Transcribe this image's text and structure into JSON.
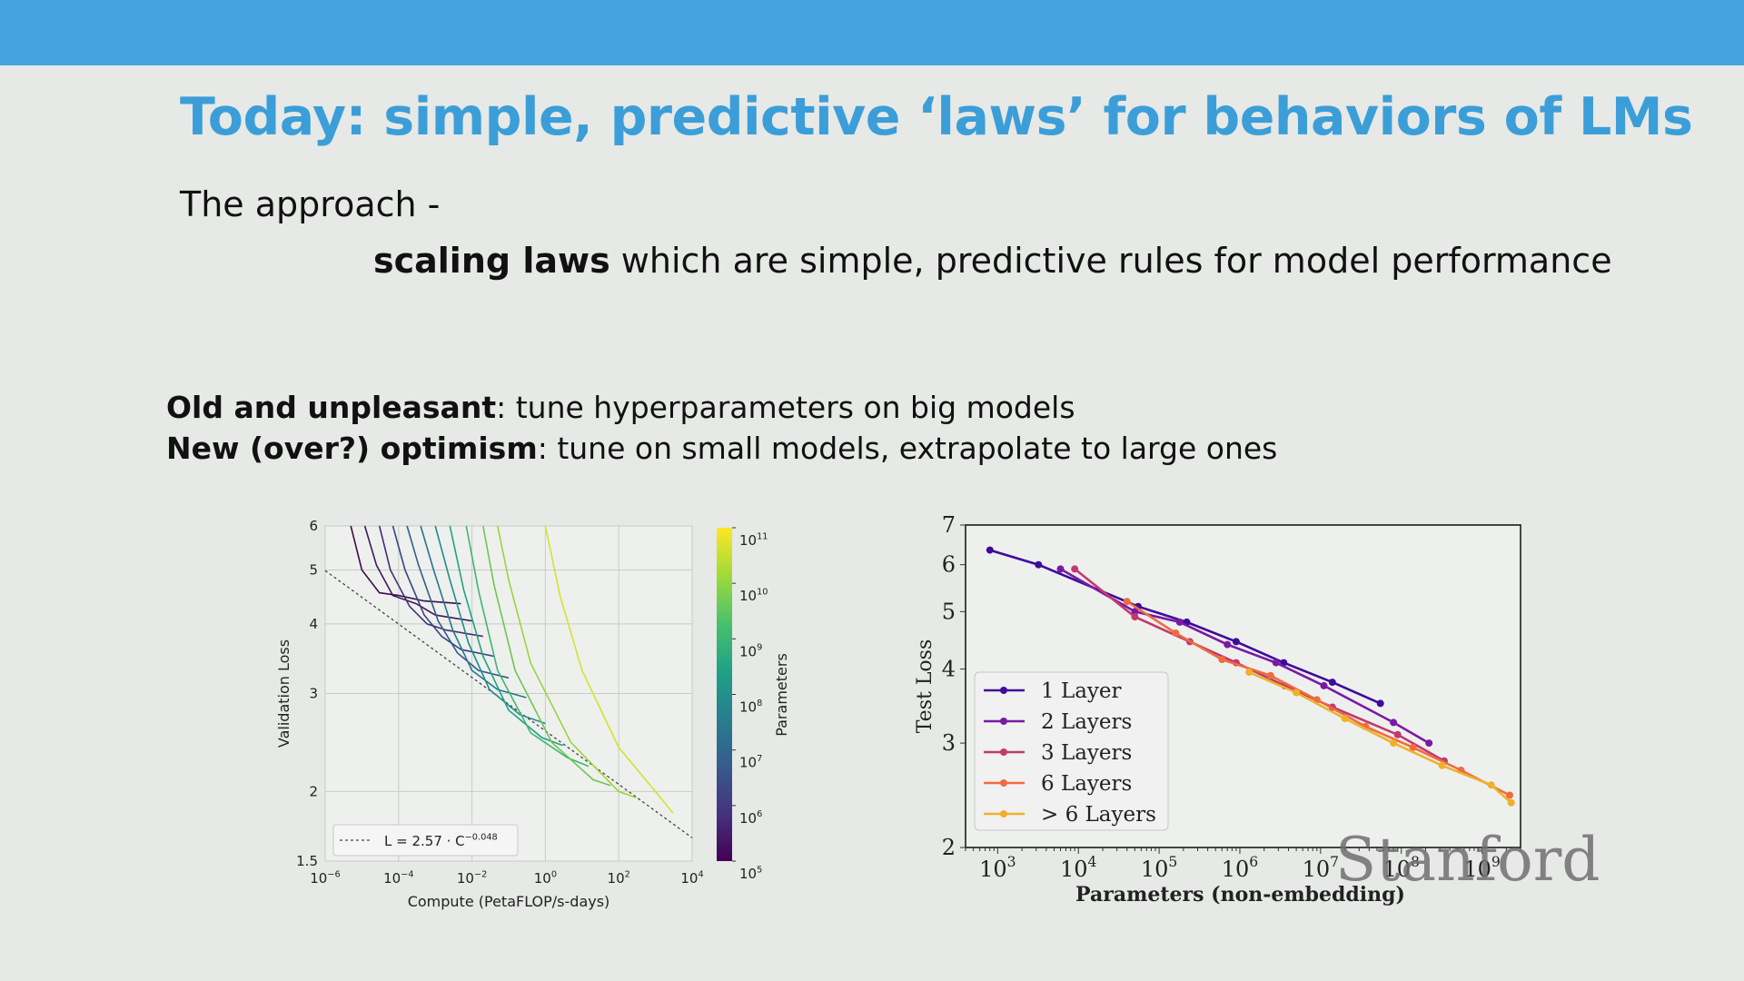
{
  "slide": {
    "title": "Today: simple, predictive ‘laws’ for behaviors of LMs",
    "approach_label": "The approach -",
    "scaling_bold": "scaling laws",
    "scaling_rest": " which are simple, predictive rules for model performance",
    "old_bold": "Old and unpleasant",
    "old_rest": ": tune hyperparameters on big models",
    "new_bold": "New (over?) optimism",
    "new_rest": ": tune on small models, extrapolate to large ones",
    "watermark": "Stanford"
  },
  "colors": {
    "topbar": "#45a3df",
    "title": "#3c9ed8",
    "background": "#e6e9e6"
  },
  "chart_data": [
    {
      "type": "line",
      "xlabel": "Compute (PetaFLOP/s-days)",
      "ylabel": "Validation Loss",
      "x_scale": "log",
      "y_scale": "log",
      "xlim": [
        1e-06,
        10000.0
      ],
      "ylim": [
        1.5,
        6
      ],
      "xticks": [
        {
          "value": 1e-06,
          "base": "10",
          "exp": "−6"
        },
        {
          "value": 0.0001,
          "base": "10",
          "exp": "−4"
        },
        {
          "value": 0.01,
          "base": "10",
          "exp": "−2"
        },
        {
          "value": 1,
          "base": "10",
          "exp": "0"
        },
        {
          "value": 100.0,
          "base": "10",
          "exp": "2"
        },
        {
          "value": 10000.0,
          "base": "10",
          "exp": "4"
        }
      ],
      "yticks": [
        {
          "value": 1.5,
          "label": "1.5"
        },
        {
          "value": 2,
          "label": "2"
        },
        {
          "value": 3,
          "label": "3"
        },
        {
          "value": 4,
          "label": "4"
        },
        {
          "value": 5,
          "label": "5"
        },
        {
          "value": 6,
          "label": "6"
        }
      ],
      "grid": true,
      "legend_position": "lower-left",
      "fit_line": {
        "label": "L = 2.57 · C",
        "exponent": "−0.048",
        "coef": 2.57,
        "power": -0.048
      },
      "colorbar": {
        "label": "Parameters",
        "range": [
          100000.0,
          100000000000.0
        ],
        "ticks": [
          {
            "base": "10",
            "exp": "11"
          },
          {
            "base": "10",
            "exp": "10"
          },
          {
            "base": "10",
            "exp": "9"
          },
          {
            "base": "10",
            "exp": "8"
          },
          {
            "base": "10",
            "exp": "7"
          },
          {
            "base": "10",
            "exp": "6"
          },
          {
            "base": "10",
            "exp": "5"
          }
        ],
        "colors": [
          "#440154",
          "#46327e",
          "#365c8d",
          "#277f8e",
          "#1fa187",
          "#4ac16d",
          "#a0da39",
          "#fde725"
        ]
      },
      "curves": [
        {
          "color": "#3b0f4a",
          "points": [
            [
              5e-06,
              6.0
            ],
            [
              1e-05,
              5.0
            ],
            [
              3e-05,
              4.55
            ],
            [
              0.0001,
              4.5
            ],
            [
              0.0005,
              4.4
            ],
            [
              0.005,
              4.35
            ]
          ]
        },
        {
          "color": "#41185e",
          "points": [
            [
              1.2e-05,
              6.0
            ],
            [
              2.5e-05,
              5.1
            ],
            [
              7e-05,
              4.5
            ],
            [
              0.0003,
              4.35
            ],
            [
              0.001,
              4.15
            ],
            [
              0.01,
              4.05
            ]
          ]
        },
        {
          "color": "#423073",
          "points": [
            [
              3e-05,
              6.0
            ],
            [
              6e-05,
              5.0
            ],
            [
              0.0002,
              4.3
            ],
            [
              0.0006,
              4.0
            ],
            [
              0.002,
              3.9
            ],
            [
              0.02,
              3.8
            ]
          ]
        },
        {
          "color": "#38447f",
          "points": [
            [
              7e-05,
              6.0
            ],
            [
              0.00015,
              5.0
            ],
            [
              0.0005,
              4.15
            ],
            [
              0.0015,
              3.8
            ],
            [
              0.005,
              3.6
            ],
            [
              0.04,
              3.5
            ]
          ]
        },
        {
          "color": "#2f5d8a",
          "points": [
            [
              0.00017,
              6.0
            ],
            [
              0.00035,
              5.1
            ],
            [
              0.0012,
              4.05
            ],
            [
              0.004,
              3.55
            ],
            [
              0.015,
              3.3
            ],
            [
              0.1,
              3.2
            ]
          ]
        },
        {
          "color": "#26758d",
          "points": [
            [
              0.0004,
              6.0
            ],
            [
              0.0009,
              5.0
            ],
            [
              0.003,
              3.9
            ],
            [
              0.01,
              3.3
            ],
            [
              0.05,
              3.05
            ],
            [
              0.3,
              2.95
            ]
          ]
        },
        {
          "color": "#1f8c8a",
          "points": [
            [
              0.001,
              6.0
            ],
            [
              0.0025,
              4.8
            ],
            [
              0.008,
              3.7
            ],
            [
              0.03,
              3.05
            ],
            [
              0.2,
              2.75
            ],
            [
              1,
              2.65
            ]
          ]
        },
        {
          "color": "#22a183",
          "points": [
            [
              0.0025,
              6.0
            ],
            [
              0.006,
              4.6
            ],
            [
              0.02,
              3.5
            ],
            [
              0.1,
              2.8
            ],
            [
              0.8,
              2.5
            ],
            [
              3,
              2.42
            ]
          ]
        },
        {
          "color": "#40b66f",
          "points": [
            [
              0.007,
              6.0
            ],
            [
              0.015,
              4.6
            ],
            [
              0.05,
              3.3
            ],
            [
              0.4,
              2.55
            ],
            [
              4,
              2.3
            ],
            [
              15,
              2.22
            ]
          ]
        },
        {
          "color": "#6cc653",
          "points": [
            [
              0.02,
              6.0
            ],
            [
              0.04,
              4.7
            ],
            [
              0.15,
              3.3
            ],
            [
              1.5,
              2.45
            ],
            [
              20,
              2.1
            ],
            [
              60,
              2.05
            ]
          ]
        },
        {
          "color": "#9ad53a",
          "points": [
            [
              0.05,
              6.0
            ],
            [
              0.1,
              4.8
            ],
            [
              0.4,
              3.4
            ],
            [
              5,
              2.45
            ],
            [
              100,
              2.0
            ],
            [
              300,
              1.95
            ]
          ]
        },
        {
          "color": "#d5e22a",
          "points": [
            [
              1,
              6.0
            ],
            [
              2.5,
              4.5
            ],
            [
              10,
              3.3
            ],
            [
              100,
              2.4
            ],
            [
              1000,
              2.0
            ],
            [
              3000,
              1.83
            ]
          ]
        }
      ]
    },
    {
      "type": "line",
      "xlabel": "Parameters (non-embedding)",
      "ylabel": "Test Loss",
      "x_scale": "log",
      "y_scale": "log",
      "xlim": [
        400,
        3000000000.0
      ],
      "ylim": [
        2,
        7
      ],
      "xticks": [
        {
          "value": 1000.0,
          "base": "10",
          "exp": "3"
        },
        {
          "value": 10000.0,
          "base": "10",
          "exp": "4"
        },
        {
          "value": 100000.0,
          "base": "10",
          "exp": "5"
        },
        {
          "value": 1000000.0,
          "base": "10",
          "exp": "6"
        },
        {
          "value": 10000000.0,
          "base": "10",
          "exp": "7"
        },
        {
          "value": 100000000.0,
          "base": "10",
          "exp": "8"
        },
        {
          "value": 1000000000.0,
          "base": "10",
          "exp": "9"
        }
      ],
      "yticks": [
        {
          "value": 2,
          "label": "2"
        },
        {
          "value": 3,
          "label": "3"
        },
        {
          "value": 4,
          "label": "4"
        },
        {
          "value": 5,
          "label": "5"
        },
        {
          "value": 6,
          "label": "6"
        },
        {
          "value": 7,
          "label": "7"
        }
      ],
      "grid": false,
      "legend_position": "lower-left",
      "series": [
        {
          "name": "1 Layer",
          "color": "#3f0b9a",
          "points": [
            [
              800,
              6.35
            ],
            [
              3200,
              6.0
            ],
            [
              55000.0,
              5.1
            ],
            [
              220000.0,
              4.8
            ],
            [
              900000.0,
              4.45
            ],
            [
              3500000.0,
              4.1
            ],
            [
              14000000.0,
              3.8
            ],
            [
              55000000.0,
              3.5
            ]
          ]
        },
        {
          "name": "2 Layers",
          "color": "#7a1aa4",
          "points": [
            [
              6000,
              5.9
            ],
            [
              50000.0,
              5.0
            ],
            [
              180000.0,
              4.8
            ],
            [
              700000.0,
              4.4
            ],
            [
              2800000.0,
              4.1
            ],
            [
              11000000.0,
              3.75
            ],
            [
              80000000.0,
              3.25
            ],
            [
              220000000.0,
              3.0
            ]
          ]
        },
        {
          "name": "3 Layers",
          "color": "#c13a6e",
          "points": [
            [
              9000.0,
              5.9
            ],
            [
              50000.0,
              4.9
            ],
            [
              240000.0,
              4.45
            ],
            [
              900000.0,
              4.1
            ],
            [
              3600000.0,
              3.75
            ],
            [
              14000000.0,
              3.45
            ],
            [
              90000000.0,
              3.1
            ],
            [
              340000000.0,
              2.8
            ]
          ]
        },
        {
          "name": "6 Layers",
          "color": "#ef6c3f",
          "points": [
            [
              40000.0,
              5.2
            ],
            [
              160000.0,
              4.6
            ],
            [
              600000.0,
              4.15
            ],
            [
              2400000.0,
              3.9
            ],
            [
              9000000.0,
              3.55
            ],
            [
              36000000.0,
              3.2
            ],
            [
              140000000.0,
              2.95
            ],
            [
              550000000.0,
              2.7
            ],
            [
              2200000000.0,
              2.45
            ]
          ]
        },
        {
          "name": "> 6 Layers",
          "color": "#eeb12b",
          "points": [
            [
              1300000.0,
              3.95
            ],
            [
              5000000.0,
              3.65
            ],
            [
              20000000.0,
              3.3
            ],
            [
              80000000.0,
              3.0
            ],
            [
              320000000.0,
              2.75
            ],
            [
              1300000000.0,
              2.55
            ],
            [
              2300000000.0,
              2.38
            ]
          ]
        }
      ]
    }
  ]
}
